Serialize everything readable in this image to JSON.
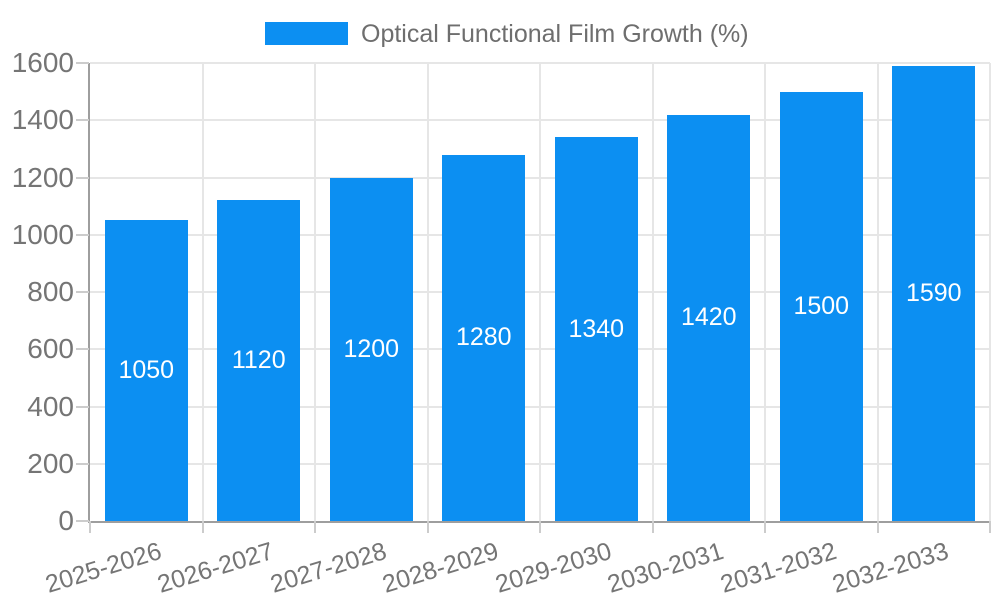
{
  "chart_data": {
    "type": "bar",
    "title": "Optical Functional Film Growth (%)",
    "categories": [
      "2025-2026",
      "2026-2027",
      "2027-2028",
      "2028-2029",
      "2029-2030",
      "2030-2031",
      "2031-2032",
      "2032-2033"
    ],
    "values": [
      1050,
      1120,
      1200,
      1280,
      1340,
      1420,
      1500,
      1590
    ],
    "bar_value_labels": [
      "1050",
      "1120",
      "1200",
      "1280",
      "1340",
      "1420",
      "1500",
      "1590"
    ],
    "xlabel": "",
    "ylabel": "",
    "ylim": [
      0,
      1600
    ],
    "ytick_step": 200,
    "y_tick_labels": [
      "0",
      "200",
      "400",
      "600",
      "800",
      "1000",
      "1200",
      "1400",
      "1600"
    ],
    "grid": true,
    "legend_position": "top",
    "value_labels_inside_bars": true
  },
  "legend": {
    "label": "Optical Functional Film Growth (%)"
  },
  "colors": {
    "bar": "#0c8ff2",
    "grid": "#e6e6e6",
    "axis": "#9e9e9e",
    "tick": "#cccccc",
    "tick_label": "#757575",
    "legend_text": "#6e6e6e",
    "value_label": "#ffffff",
    "background": "#ffffff"
  }
}
